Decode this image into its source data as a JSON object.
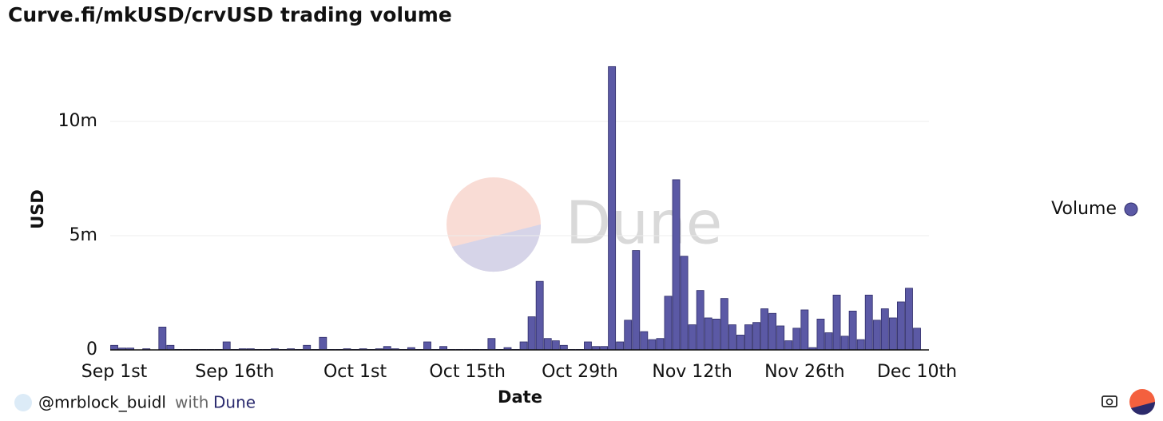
{
  "chart_data": {
    "type": "bar",
    "title": "Curve.fi/mkUSD/crvUSD trading volume",
    "y_label": "USD",
    "x_label": "Date",
    "watermark": "Dune",
    "categories": [
      "Sep 1st",
      null,
      null,
      null,
      null,
      null,
      null,
      null,
      null,
      null,
      null,
      null,
      null,
      null,
      null,
      "Sep 16th",
      null,
      null,
      null,
      null,
      null,
      null,
      null,
      null,
      null,
      null,
      null,
      null,
      null,
      null,
      "Oct 1st",
      null,
      null,
      null,
      null,
      null,
      null,
      null,
      null,
      null,
      null,
      null,
      null,
      null,
      "Oct 15th",
      null,
      null,
      null,
      null,
      null,
      null,
      null,
      null,
      null,
      null,
      null,
      null,
      null,
      "Oct 29th",
      null,
      null,
      null,
      null,
      null,
      null,
      null,
      null,
      null,
      null,
      null,
      null,
      null,
      "Nov 12th",
      null,
      null,
      null,
      null,
      null,
      null,
      null,
      null,
      null,
      null,
      null,
      null,
      null,
      "Nov 26th",
      null,
      null,
      null,
      null,
      null,
      null,
      null,
      null,
      null,
      null,
      null,
      null,
      null,
      "Dec 10th"
    ],
    "series": [
      {
        "name": "Volume",
        "color": "#5b59a5",
        "values": [
          200000,
          80000,
          80000,
          0,
          50000,
          0,
          1000000,
          200000,
          20000,
          20000,
          20000,
          20000,
          20000,
          20000,
          350000,
          20000,
          50000,
          50000,
          20000,
          20000,
          50000,
          20000,
          50000,
          20000,
          200000,
          20000,
          550000,
          20000,
          20000,
          50000,
          20000,
          50000,
          20000,
          50000,
          150000,
          50000,
          20000,
          100000,
          20000,
          350000,
          20000,
          150000,
          20000,
          20000,
          20000,
          20000,
          20000,
          500000,
          20000,
          100000,
          20000,
          350000,
          1450000,
          3000000,
          500000,
          400000,
          200000,
          20000,
          20000,
          350000,
          150000,
          150000,
          12400000,
          350000,
          1300000,
          4350000,
          800000,
          450000,
          500000,
          2350000,
          7450000,
          4100000,
          1100000,
          2600000,
          1400000,
          1350000,
          2250000,
          1100000,
          650000,
          1100000,
          1200000,
          1800000,
          1600000,
          1050000,
          400000,
          950000,
          1750000,
          100000,
          1350000,
          750000,
          2400000,
          600000,
          1700000,
          450000,
          2400000,
          1300000,
          1800000,
          1400000,
          2100000,
          2700000,
          950000
        ]
      }
    ],
    "ylim": [
      0,
      12500000
    ],
    "yticks": [
      {
        "value": 0,
        "label": "0"
      },
      {
        "value": 5000000,
        "label": "5m"
      },
      {
        "value": 10000000,
        "label": "10m"
      }
    ],
    "grid": true,
    "legend": "right"
  },
  "footer": {
    "author": "@mrblock_buidl",
    "with": "with",
    "brand": "Dune"
  }
}
